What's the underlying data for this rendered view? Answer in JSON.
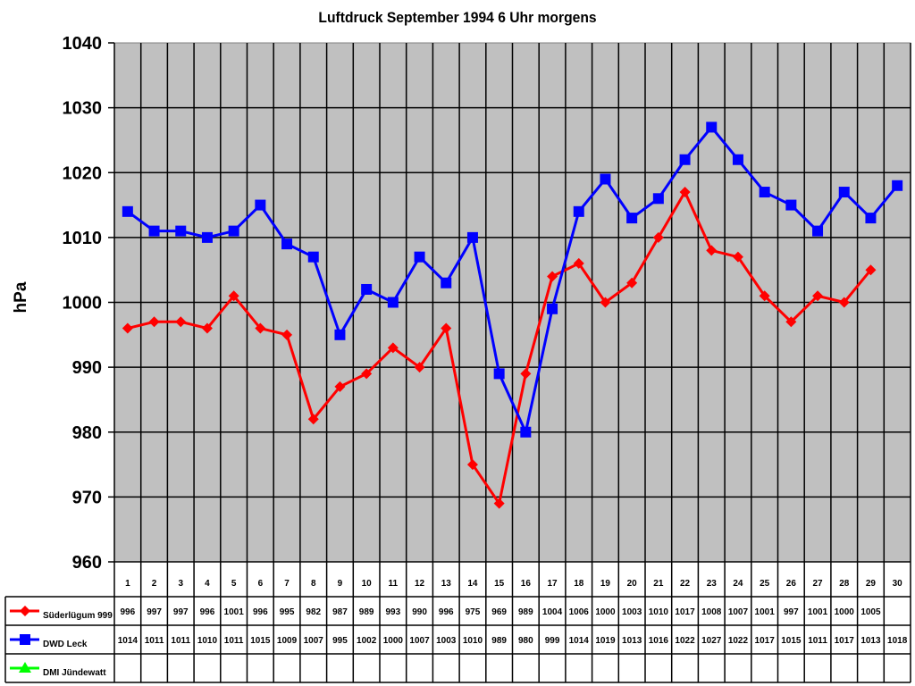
{
  "chart_data": {
    "type": "line",
    "title": "Luftdruck September 1994 6 Uhr morgens",
    "xlabel": "",
    "ylabel": "hPa",
    "ylim": [
      960,
      1040
    ],
    "yticks": [
      960,
      970,
      980,
      990,
      1000,
      1010,
      1020,
      1030,
      1040
    ],
    "grid": true,
    "legend_position": "data-table-left",
    "categories": [
      "1",
      "2",
      "3",
      "4",
      "5",
      "6",
      "7",
      "8",
      "9",
      "10",
      "11",
      "12",
      "13",
      "14",
      "15",
      "16",
      "17",
      "18",
      "19",
      "20",
      "21",
      "22",
      "23",
      "24",
      "25",
      "26",
      "27",
      "28",
      "29",
      "30"
    ],
    "series": [
      {
        "name": "Süderlügum 999",
        "color": "#ff0000",
        "marker": "diamond",
        "values": [
          996,
          997,
          997,
          996,
          1001,
          996,
          995,
          982,
          987,
          989,
          993,
          990,
          996,
          975,
          969,
          989,
          1004,
          1006,
          1000,
          1003,
          1010,
          1017,
          1008,
          1007,
          1001,
          997,
          1001,
          1000,
          1005,
          null
        ]
      },
      {
        "name": "DWD Leck",
        "color": "#0000ff",
        "marker": "square",
        "values": [
          1014,
          1011,
          1011,
          1010,
          1011,
          1015,
          1009,
          1007,
          995,
          1002,
          1000,
          1007,
          1003,
          1010,
          989,
          980,
          999,
          1014,
          1019,
          1013,
          1016,
          1022,
          1027,
          1022,
          1017,
          1015,
          1011,
          1017,
          1013,
          1018
        ]
      },
      {
        "name": "DMI Jündewatt",
        "color": "#00ff00",
        "marker": "triangle",
        "values": [
          null,
          null,
          null,
          null,
          null,
          null,
          null,
          null,
          null,
          null,
          null,
          null,
          null,
          null,
          null,
          null,
          null,
          null,
          null,
          null,
          null,
          null,
          null,
          null,
          null,
          null,
          null,
          null,
          null,
          null
        ]
      }
    ]
  },
  "colors": {
    "plot_bg": "#c0c0c0",
    "grid": "#000000"
  }
}
